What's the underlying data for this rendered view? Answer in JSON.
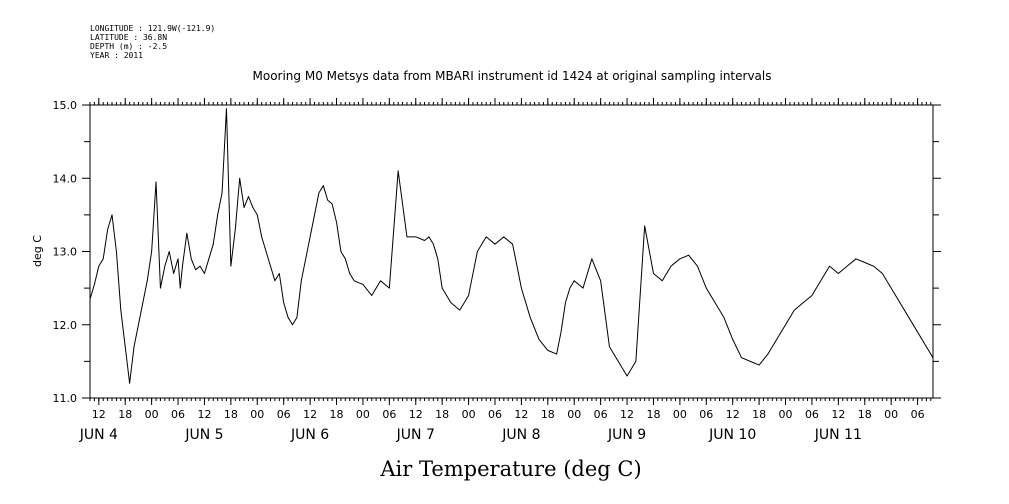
{
  "metadata": [
    "LONGITUDE : 121.9W(-121.9)",
    "LATITUDE : 36.8N",
    "DEPTH (m) : -2.5",
    "YEAR : 2011"
  ],
  "chart_data": {
    "type": "line",
    "title": "Mooring M0 Metsys data from MBARI instrument id 1424 at original sampling intervals",
    "xlabel": "Air Temperature (deg C)",
    "ylabel": "deg C",
    "ylim": [
      11.0,
      15.0
    ],
    "xlim_hours": [
      10,
      201.5
    ],
    "y_ticks": [
      "11.0",
      "12.0",
      "13.0",
      "14.0",
      "15.0"
    ],
    "x_hour_ticks": [
      "12",
      "18",
      "00",
      "06",
      "12",
      "18",
      "00",
      "06",
      "12",
      "18",
      "00",
      "06",
      "12",
      "18",
      "00",
      "06",
      "12",
      "18",
      "00",
      "06",
      "12",
      "18",
      "00",
      "06",
      "12",
      "18",
      "00",
      "06",
      "12",
      "18",
      "00",
      "06"
    ],
    "x_date_labels": [
      "JUN  4",
      "JUN  5",
      "JUN  6",
      "JUN  7",
      "JUN  8",
      "JUN  9",
      "JUN 10",
      "JUN 11"
    ],
    "grid": false,
    "series": [
      {
        "x": [
          10,
          11,
          12,
          13,
          14,
          15,
          16,
          17,
          18,
          19,
          20,
          21,
          22,
          23,
          24,
          25,
          26,
          27,
          28,
          29,
          30,
          30.5,
          31,
          32,
          33,
          34,
          35,
          36,
          37,
          38,
          39,
          40,
          41,
          42,
          43,
          44,
          45,
          46,
          47,
          48,
          49,
          50,
          51,
          52,
          53,
          54,
          55,
          56,
          57,
          58,
          59,
          60,
          61,
          62,
          63,
          64,
          65,
          66,
          67,
          68,
          69,
          70,
          72,
          74,
          76,
          78,
          80,
          82,
          84,
          86,
          87,
          88,
          89,
          90,
          92,
          94,
          96,
          98,
          100,
          102,
          104,
          106,
          108,
          110,
          112,
          114,
          116,
          117,
          118,
          119,
          120,
          122,
          124,
          126,
          128,
          130,
          132,
          134,
          136,
          138,
          140,
          142,
          144,
          146,
          148,
          150,
          152,
          154,
          156,
          158,
          160,
          162,
          164,
          166,
          168,
          170,
          172,
          174,
          176,
          178,
          180,
          182,
          184,
          186,
          188,
          190,
          192,
          194,
          196,
          198,
          200,
          201.5
        ],
        "y": [
          12.35,
          12.55,
          12.8,
          12.9,
          13.3,
          13.5,
          13.0,
          12.2,
          11.7,
          11.2,
          11.7,
          12.0,
          12.3,
          12.6,
          13.0,
          13.95,
          12.5,
          12.8,
          13.0,
          12.7,
          12.9,
          12.5,
          12.8,
          13.25,
          12.9,
          12.75,
          12.8,
          12.7,
          12.9,
          13.1,
          13.5,
          13.8,
          14.95,
          12.8,
          13.3,
          14.0,
          13.6,
          13.75,
          13.6,
          13.5,
          13.2,
          13.0,
          12.8,
          12.6,
          12.7,
          12.3,
          12.1,
          12.0,
          12.1,
          12.6,
          12.9,
          13.2,
          13.5,
          13.8,
          13.9,
          13.7,
          13.65,
          13.4,
          13.0,
          12.9,
          12.7,
          12.6,
          12.55,
          12.4,
          12.6,
          12.5,
          14.1,
          13.2,
          13.2,
          13.15,
          13.2,
          13.1,
          12.9,
          12.5,
          12.3,
          12.2,
          12.4,
          13.0,
          13.2,
          13.1,
          13.2,
          13.1,
          12.5,
          12.1,
          11.8,
          11.65,
          11.6,
          11.9,
          12.3,
          12.5,
          12.6,
          12.5,
          12.9,
          12.6,
          11.7,
          11.5,
          11.3,
          11.5,
          13.35,
          12.7,
          12.6,
          12.8,
          12.9,
          12.95,
          12.8,
          12.5,
          12.3,
          12.1,
          11.8,
          11.55,
          11.5,
          11.45,
          11.6,
          11.8,
          12.0,
          12.2,
          12.3,
          12.4,
          12.6,
          12.8,
          12.7,
          12.8,
          12.9,
          12.85,
          12.8,
          12.7,
          12.5,
          12.3,
          12.1,
          11.9,
          11.7,
          11.55
        ]
      }
    ]
  }
}
